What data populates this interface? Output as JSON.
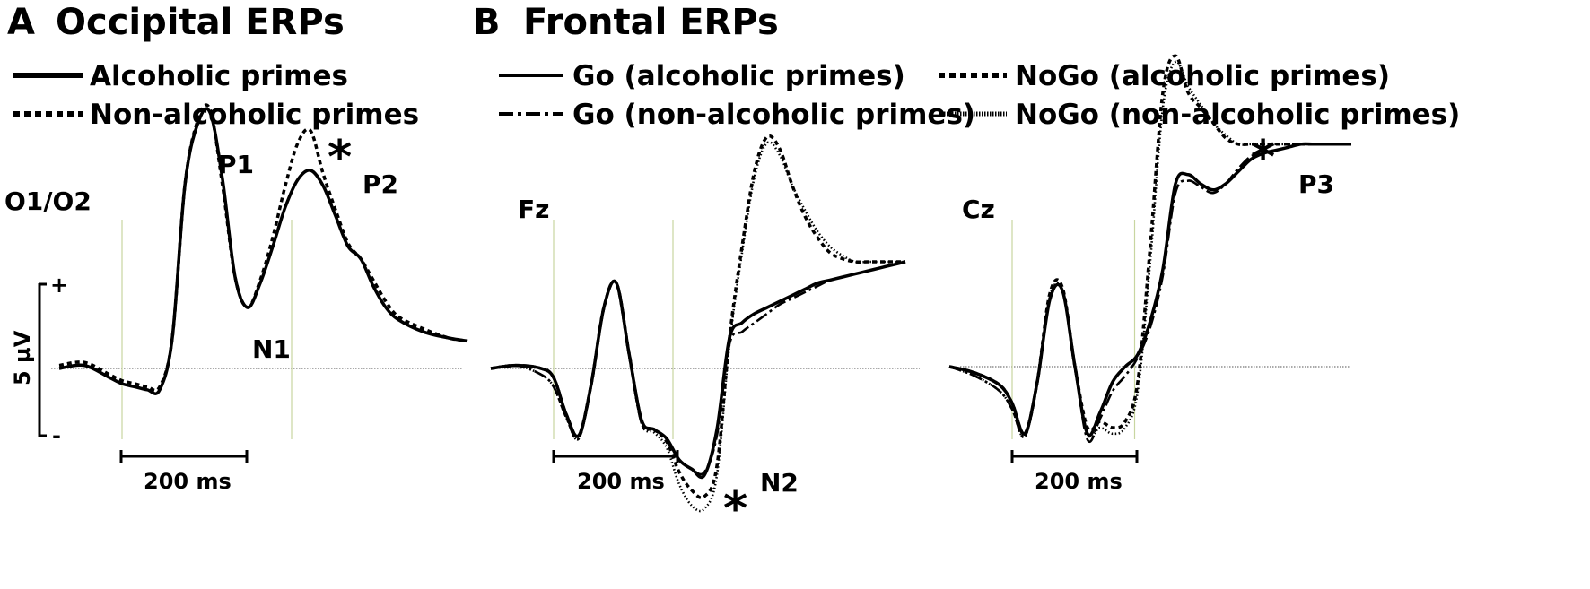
{
  "panels": {
    "a": {
      "letter": "A",
      "title": "Occipital ERPs"
    },
    "b": {
      "letter": "B",
      "title": "Frontal ERPs"
    }
  },
  "legend_a": [
    {
      "label": "Alcoholic primes",
      "style": "solid"
    },
    {
      "label": "Non-alcoholic primes",
      "style": "dotted"
    }
  ],
  "legend_b": [
    {
      "label": "Go (alcoholic primes)",
      "style": "solid"
    },
    {
      "label": "Go (non-alcoholic primes)",
      "style": "dashdot"
    },
    {
      "label": "NoGo (alcoholic primes)",
      "style": "dotted"
    },
    {
      "label": "NoGo (non-alcoholic primes)",
      "style": "finedot"
    }
  ],
  "voltage_scale": {
    "label": "5 µV",
    "plus": "+",
    "minus": "-"
  },
  "time_scale_label": "200 ms",
  "significance_marker": "*",
  "colors": {
    "ink": "#000000",
    "guide_line": "#c8d6a0"
  },
  "chart_data": [
    {
      "type": "line",
      "electrode": "O1/O2",
      "time_ms": [
        -100,
        -60,
        -20,
        0,
        20,
        40,
        60,
        80,
        100,
        120,
        140,
        160,
        180,
        200,
        220,
        240,
        260,
        280,
        300,
        320,
        340,
        360,
        380,
        400,
        420,
        440,
        480,
        520,
        550
      ],
      "series": [
        {
          "name": "Alcoholic primes",
          "style": "solid",
          "values": [
            0.0,
            0.1,
            -0.3,
            -0.5,
            -0.6,
            -0.7,
            -0.7,
            1.0,
            6.0,
            8.0,
            8.4,
            6.2,
            3.0,
            2.0,
            2.8,
            4.0,
            5.3,
            6.2,
            6.5,
            6.0,
            5.0,
            4.0,
            3.6,
            2.7,
            2.0,
            1.6,
            1.2,
            1.0,
            0.9
          ]
        },
        {
          "name": "Non-alcoholic primes",
          "style": "dotted",
          "values": [
            0.1,
            0.2,
            -0.2,
            -0.4,
            -0.5,
            -0.6,
            -0.6,
            1.0,
            6.0,
            8.1,
            8.5,
            6.0,
            3.0,
            2.0,
            2.9,
            4.3,
            6.0,
            7.4,
            7.8,
            6.4,
            5.2,
            4.1,
            3.6,
            2.9,
            2.2,
            1.7,
            1.3,
            1.0,
            0.9
          ]
        }
      ],
      "components": [
        {
          "label": "P1",
          "significant": false
        },
        {
          "label": "N1",
          "significant": false
        },
        {
          "label": "P2",
          "significant": true
        }
      ]
    },
    {
      "type": "line",
      "electrode": "Fz",
      "time_ms": [
        -100,
        -60,
        -20,
        0,
        20,
        40,
        60,
        80,
        100,
        120,
        140,
        160,
        180,
        200,
        220,
        240,
        260,
        280,
        300,
        320,
        340,
        360,
        380,
        400,
        420,
        440,
        460,
        480,
        500,
        520,
        540,
        560
      ],
      "series": [
        {
          "name": "Go (alcoholic primes)",
          "style": "solid",
          "values": [
            0.0,
            0.1,
            0.0,
            -0.3,
            -1.5,
            -2.2,
            -0.5,
            2.0,
            2.8,
            0.5,
            -1.7,
            -2.0,
            -2.3,
            -3.0,
            -3.3,
            -3.5,
            -2.0,
            1.0,
            1.5,
            1.8,
            2.0,
            2.2,
            2.4,
            2.6,
            2.8,
            2.9,
            3.0,
            3.1,
            3.2,
            3.3,
            3.4,
            3.5
          ]
        },
        {
          "name": "Go (non-alcoholic primes)",
          "style": "dashdot",
          "values": [
            0.0,
            0.1,
            -0.2,
            -0.6,
            -1.6,
            -2.3,
            -0.5,
            2.0,
            2.8,
            0.5,
            -1.8,
            -2.0,
            -2.4,
            -3.0,
            -3.3,
            -3.4,
            -2.2,
            0.8,
            1.2,
            1.5,
            1.8,
            2.1,
            2.3,
            2.5,
            2.7,
            2.9,
            3.0,
            3.1,
            3.2,
            3.3,
            3.4,
            3.5
          ]
        },
        {
          "name": "NoGo (alcoholic primes)",
          "style": "dotted",
          "values": [
            0.0,
            0.1,
            0.0,
            -0.3,
            -1.5,
            -2.2,
            -0.5,
            2.0,
            2.8,
            0.5,
            -1.7,
            -2.0,
            -2.4,
            -3.4,
            -4.0,
            -4.2,
            -3.2,
            1.0,
            4.0,
            6.5,
            7.6,
            7.2,
            6.0,
            5.0,
            4.3,
            3.8,
            3.6,
            3.5,
            3.5,
            3.5,
            3.5,
            3.5
          ]
        },
        {
          "name": "NoGo (non-alcoholic primes)",
          "style": "finedot",
          "values": [
            0.0,
            0.1,
            -0.2,
            -0.6,
            -1.6,
            -2.3,
            -0.5,
            2.0,
            2.8,
            0.5,
            -1.8,
            -2.1,
            -2.6,
            -3.8,
            -4.5,
            -4.6,
            -3.5,
            0.8,
            3.8,
            6.3,
            7.4,
            7.0,
            6.0,
            5.2,
            4.5,
            4.0,
            3.7,
            3.5,
            3.5,
            3.5,
            3.5,
            3.5
          ]
        }
      ],
      "components": [
        {
          "label": "N2",
          "significant": true
        }
      ]
    },
    {
      "type": "line",
      "electrode": "Cz",
      "time_ms": [
        -100,
        -60,
        -20,
        0,
        20,
        40,
        60,
        80,
        100,
        120,
        140,
        160,
        180,
        200,
        220,
        240,
        260,
        280,
        300,
        320,
        340,
        360,
        380,
        400,
        420,
        440,
        460,
        480,
        500,
        520,
        540
      ],
      "series": [
        {
          "name": "Go (alcoholic primes)",
          "style": "solid",
          "values": [
            0.0,
            -0.2,
            -0.6,
            -1.2,
            -2.2,
            -0.5,
            2.2,
            2.5,
            0.0,
            -2.2,
            -1.5,
            -0.5,
            0.0,
            0.4,
            1.5,
            3.2,
            6.0,
            6.3,
            6.0,
            5.8,
            6.0,
            6.4,
            6.8,
            7.0,
            7.1,
            7.2,
            7.3,
            7.3,
            7.3,
            7.3,
            7.3
          ]
        },
        {
          "name": "Go (non-alcoholic primes)",
          "style": "dashdot",
          "values": [
            0.0,
            -0.3,
            -0.8,
            -1.4,
            -2.3,
            -0.5,
            2.2,
            2.5,
            0.0,
            -2.4,
            -1.7,
            -0.8,
            -0.3,
            0.3,
            1.3,
            3.0,
            5.7,
            6.1,
            5.9,
            5.7,
            6.0,
            6.5,
            6.9,
            7.0,
            7.1,
            7.2,
            7.3,
            7.3,
            7.3,
            7.3,
            7.3
          ]
        },
        {
          "name": "NoGo (alcoholic primes)",
          "style": "dotted",
          "values": [
            0.0,
            -0.2,
            -0.6,
            -1.2,
            -2.2,
            -0.5,
            2.4,
            2.6,
            0.0,
            -2.0,
            -1.8,
            -2.0,
            -1.8,
            -0.5,
            4.0,
            9.0,
            10.2,
            9.0,
            8.5,
            8.0,
            7.5,
            7.3,
            7.3,
            7.3,
            7.3,
            7.3,
            7.3,
            7.3,
            7.3,
            7.3,
            7.3
          ]
        },
        {
          "name": "NoGo (non-alcoholic primes)",
          "style": "finedot",
          "values": [
            0.0,
            -0.3,
            -0.8,
            -1.4,
            -2.3,
            -0.5,
            2.3,
            2.5,
            0.0,
            -2.2,
            -2.0,
            -2.2,
            -2.0,
            -0.8,
            3.5,
            8.5,
            10.0,
            9.2,
            8.6,
            8.0,
            7.6,
            7.3,
            7.3,
            7.3,
            7.3,
            7.3,
            7.3,
            7.3,
            7.3,
            7.3,
            7.3
          ]
        }
      ],
      "components": [
        {
          "label": "P3",
          "significant": true
        }
      ]
    }
  ]
}
